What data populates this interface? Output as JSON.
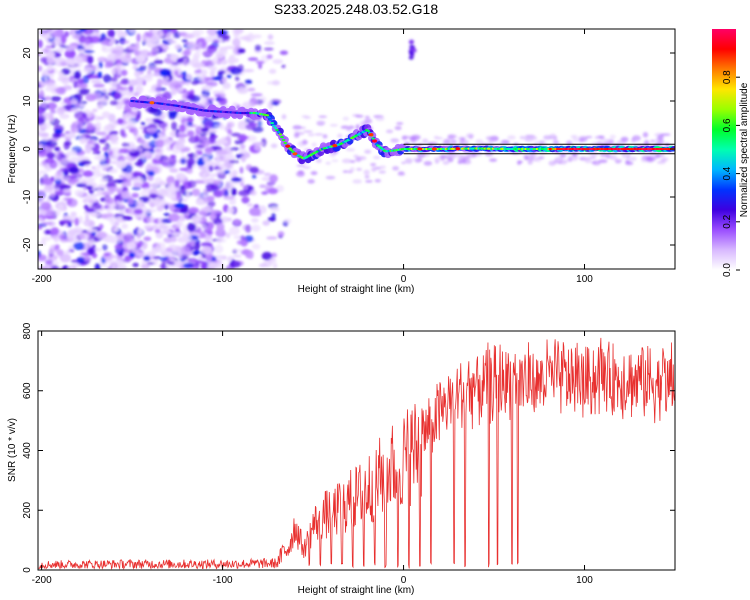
{
  "title": "S233.2025.248.03.52.G18",
  "chart_data": [
    {
      "type": "heatmap",
      "xlabel": "Height of straight line (km)",
      "ylabel": "Frequency (Hz)",
      "xlim": [
        -202,
        150
      ],
      "ylim": [
        -25,
        25
      ],
      "xticks": [
        -200,
        -100,
        0,
        100
      ],
      "yticks": [
        -20,
        -10,
        0,
        10,
        20
      ],
      "colorbar": {
        "label": "Normalized spectral amplitude",
        "range": [
          0,
          1
        ],
        "ticks": [
          0.0,
          0.2,
          0.4,
          0.6,
          0.8
        ],
        "tick_labels": [
          "0.0",
          "0.2",
          "0.4",
          "0.6",
          "0.8"
        ],
        "colors": [
          "#ffffff",
          "#d8b8ff",
          "#9a4dff",
          "#3d00e0",
          "#0033ff",
          "#00b7ff",
          "#00ffb0",
          "#00ff2a",
          "#9aff00",
          "#ffe600",
          "#ff7a00",
          "#ff0000",
          "#ff0066"
        ]
      },
      "ridge": {
        "x": [
          -150,
          -135,
          -125,
          -110,
          -90,
          -82,
          -75,
          -72,
          -68,
          -65,
          -60,
          -55,
          -50,
          -45,
          -40,
          -35,
          -30,
          -25,
          -20,
          -18,
          -15,
          -10,
          -5,
          0,
          10,
          20,
          40,
          60,
          80,
          100,
          150
        ],
        "y": [
          10,
          9.5,
          9,
          8,
          7.5,
          7.5,
          7,
          5,
          3,
          1,
          -1,
          -2,
          -1,
          0,
          0.5,
          1,
          2,
          3,
          4,
          3,
          1,
          -0.5,
          -0.3,
          0,
          0,
          0,
          0.1,
          0,
          0,
          0,
          0
        ]
      },
      "horizontal_lines_hz": [
        1,
        -1
      ],
      "horizontal_lines_x_start": 0
    },
    {
      "type": "line",
      "xlabel": "Height of straight line (km)",
      "ylabel": "SNR (10 * v/v)",
      "xlim": [
        -202,
        150
      ],
      "ylim": [
        0,
        800
      ],
      "xticks": [
        -200,
        -100,
        0,
        100
      ],
      "yticks": [
        0,
        200,
        400,
        600,
        800
      ],
      "series": [
        {
          "name": "SNR",
          "color": "#e8302f",
          "envelope_x": [
            -202,
            -150,
            -100,
            -70,
            -63,
            -60,
            -55,
            -50,
            -45,
            -40,
            -35,
            -30,
            -25,
            -20,
            -15,
            -10,
            -5,
            0,
            5,
            10,
            15,
            20,
            25,
            30,
            35,
            40,
            45,
            50,
            55,
            60,
            70,
            80,
            90,
            100,
            110,
            120,
            130,
            140,
            150
          ],
          "envelope_y": [
            20,
            22,
            22,
            25,
            100,
            180,
            80,
            180,
            220,
            230,
            250,
            280,
            300,
            330,
            360,
            400,
            420,
            450,
            480,
            500,
            530,
            570,
            610,
            630,
            650,
            660,
            670,
            675,
            685,
            690,
            680,
            690,
            690,
            680,
            700,
            690,
            690,
            680,
            670
          ],
          "dropouts_x": [
            -52,
            -46,
            -40,
            -34,
            -28,
            -22,
            -16,
            -10,
            -3,
            3,
            9,
            15,
            28,
            34,
            47,
            52,
            60,
            63
          ],
          "dropout_min": 5
        }
      ]
    }
  ]
}
